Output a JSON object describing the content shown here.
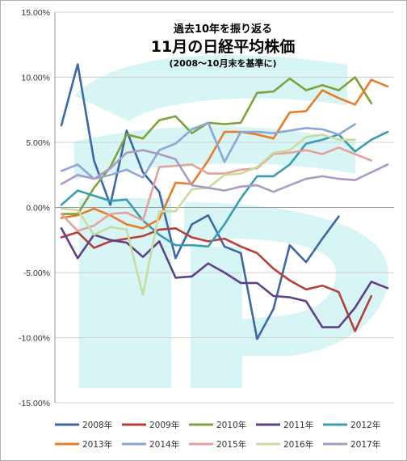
{
  "chart_data": {
    "type": "line",
    "title_lines": [
      "過去10年を振り返る",
      "11月の日経平均株価",
      "(2008～10月末を基準に)"
    ],
    "ylim": [
      -15,
      15
    ],
    "y_ticks": [
      "15.00%",
      "10.00%",
      "5.00%",
      "0.00%",
      "-5.00%",
      "-10.00%",
      "-15.00%"
    ],
    "grid": true,
    "legend_position": "bottom",
    "watermark_color": "#b7ecec",
    "series": [
      {
        "name": "2008年",
        "color": "#3a68a8",
        "values": [
          6.3,
          11.0,
          3.6,
          0.2,
          5.9,
          2.7,
          1.2,
          -3.9,
          -1.3,
          -0.6,
          -3.0,
          -3.5,
          -10.1,
          -7.8,
          -2.9,
          -4.2,
          -2.4,
          -0.7
        ]
      },
      {
        "name": "2009年",
        "color": "#b73f3a",
        "values": [
          -2.3,
          -1.9,
          -3.1,
          -2.6,
          -2.4,
          -2.2,
          -1.7,
          -1.6,
          -2.3,
          -2.6,
          -2.4,
          -3.0,
          -3.5,
          -4.7,
          -5.6,
          -6.3,
          -6.0,
          -6.5,
          -9.5,
          -6.8
        ]
      },
      {
        "name": "2010年",
        "color": "#7ea33b",
        "values": [
          -0.5,
          -0.5,
          1.5,
          3.1,
          5.6,
          5.3,
          6.7,
          7.0,
          5.7,
          6.5,
          6.4,
          6.5,
          8.8,
          8.9,
          9.9,
          9.0,
          9.4,
          9.0,
          10.0,
          8.0
        ]
      },
      {
        "name": "2011年",
        "color": "#5e4287",
        "values": [
          -1.6,
          -3.9,
          -2.1,
          -2.5,
          -2.7,
          -3.8,
          -2.6,
          -5.4,
          -5.3,
          -4.3,
          -5.0,
          -5.8,
          -5.8,
          -6.8,
          -6.9,
          -7.2,
          -9.2,
          -9.2,
          -7.7,
          -5.7,
          -6.2
        ]
      },
      {
        "name": "2012年",
        "color": "#3a9cb0",
        "values": [
          0.2,
          1.3,
          0.9,
          0.5,
          0.6,
          -1.0,
          -2.1,
          -2.9,
          -2.9,
          -3.0,
          -1.3,
          0.7,
          2.4,
          2.4,
          3.3,
          4.9,
          5.2,
          5.6,
          4.3,
          5.2,
          5.8
        ]
      },
      {
        "name": "2013年",
        "color": "#e87c2a",
        "values": [
          -0.8,
          -0.6,
          -0.1,
          -0.6,
          -1.3,
          -1.6,
          -0.9,
          1.9,
          1.8,
          3.6,
          5.8,
          5.8,
          5.6,
          5.3,
          7.3,
          7.4,
          9.0,
          8.4,
          7.9,
          9.8,
          9.3
        ]
      },
      {
        "name": "2014年",
        "color": "#8aa7d6",
        "values": [
          2.8,
          3.3,
          2.2,
          2.5,
          2.9,
          2.3,
          4.4,
          4.9,
          6.0,
          6.5,
          3.5,
          5.8,
          5.8,
          5.7,
          5.9,
          6.1,
          6.0,
          5.6,
          6.4
        ]
      },
      {
        "name": "2015年",
        "color": "#e4a29c",
        "values": [
          -0.5,
          -1.8,
          -1.4,
          -0.5,
          -0.4,
          -1.0,
          3.1,
          3.2,
          3.3,
          2.6,
          2.6,
          2.9,
          3.0,
          4.1,
          4.2,
          4.4,
          4.1,
          4.6,
          4.1,
          3.6
        ]
      },
      {
        "name": "2016年",
        "color": "#c7dca0",
        "values": [
          -0.1,
          -0.2,
          -2.1,
          -1.5,
          -1.7,
          -6.7,
          -0.3,
          -0.3,
          1.4,
          1.5,
          2.5,
          2.6,
          3.1,
          4.2,
          4.4,
          5.4,
          5.6,
          5.2,
          5.2
        ]
      },
      {
        "name": "2017年",
        "color": "#a99bc4",
        "values": [
          1.8,
          2.5,
          2.2,
          3.0,
          4.2,
          4.4,
          4.1,
          3.7,
          1.7,
          1.5,
          1.3,
          1.6,
          1.7,
          1.2,
          1.7,
          2.2,
          2.4,
          2.2,
          2.1,
          2.7,
          3.3
        ]
      }
    ]
  }
}
